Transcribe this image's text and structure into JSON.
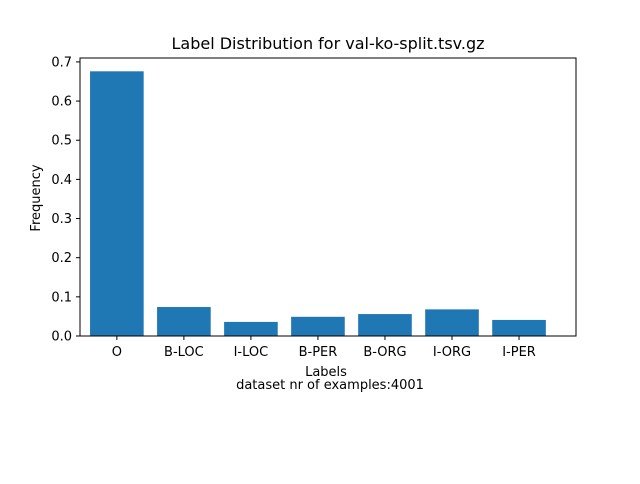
{
  "chart_data": {
    "type": "bar",
    "title": "Label Distribution for val-ko-split.tsv.gz",
    "xlabel": "Labels",
    "ylabel": "Frequency",
    "caption": "dataset nr of examples:4001",
    "categories": [
      "O",
      "B-LOC",
      "I-LOC",
      "B-PER",
      "B-ORG",
      "I-ORG",
      "I-PER"
    ],
    "values": [
      0.676,
      0.074,
      0.036,
      0.049,
      0.056,
      0.068,
      0.041
    ],
    "ylim": [
      0,
      0.71
    ],
    "yticks": [
      0.0,
      0.1,
      0.2,
      0.3,
      0.4,
      0.5,
      0.6,
      0.7
    ],
    "ytick_labels": [
      "0.0",
      "0.1",
      "0.2",
      "0.3",
      "0.4",
      "0.5",
      "0.6",
      "0.7"
    ],
    "bar_color": "#1f77b4",
    "grid": false,
    "legend": "none"
  }
}
